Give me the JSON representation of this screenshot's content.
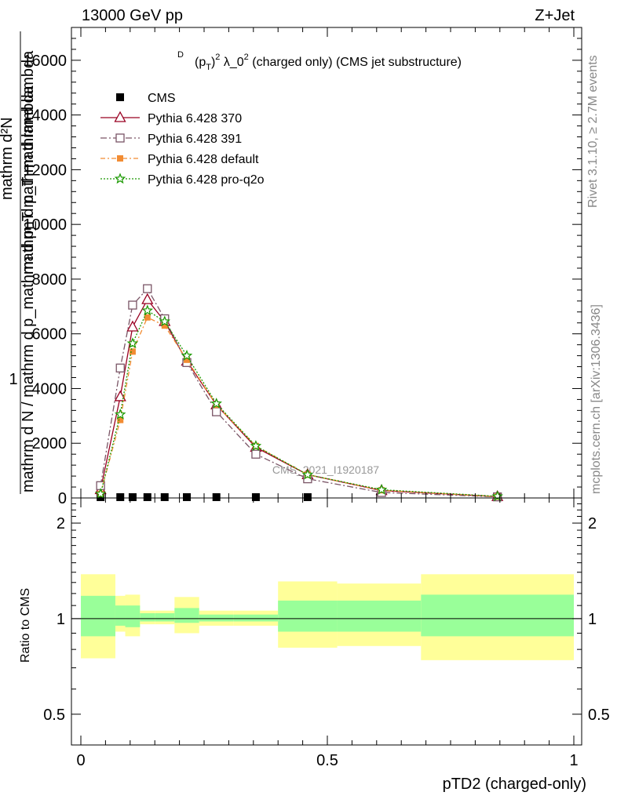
{
  "header": {
    "left": "13000 GeV pp",
    "right": "Z+Jet"
  },
  "side_labels": {
    "rivet": "Rivet 3.1.10, ≥ 2.7M events",
    "mcplots": "mcplots.cern.ch [arXiv:1306.3436]"
  },
  "colors": {
    "pythia370": "#990022",
    "pythia391": "#7a5566",
    "default": "#f28c33",
    "proq2o": "#1a9900",
    "cms": "#000000",
    "band_inner": "#99ff99",
    "band_outer": "#ffff99"
  },
  "chart_data": [
    {
      "type": "line",
      "title": "(p_T^D)^2 λ_0^2 (charged only) (CMS jet substructure)",
      "title_parts": {
        "p": "(p",
        "sup_d": "D",
        "sub_t": "T",
        "close": ")",
        "sup2": "2",
        "lambda": " λ_0",
        "sup3": "2",
        "rest": " (charged only) (CMS jet substructure)"
      },
      "ylabel_top": "1",
      "ylabel_lines": [
        "mathrm d N / mathrm d p_mathrm d p_T mathrm d lambda",
        "mathrm d²N"
      ],
      "ylabel_bottom": "mathrm d N / mathrm d p_mathrm d p_T mathrm d lambda",
      "ylabel_num": "mathrm d²N",
      "ylabel_den": "mathrm d p_T mathrm d lambda",
      "ylim": [
        0,
        17200
      ],
      "xlim": [
        -0.02,
        1.02
      ],
      "yticks": [
        {
          "v": 0,
          "label": "0"
        },
        {
          "v": 2000,
          "label": "2000"
        },
        {
          "v": 4000,
          "label": "4000"
        },
        {
          "v": 6000,
          "label": "6000"
        },
        {
          "v": 8000,
          "label": "8000"
        },
        {
          "v": 10000,
          "label": "10000"
        },
        {
          "v": 12000,
          "label": "12000"
        },
        {
          "v": 14000,
          "label": "14000"
        },
        {
          "v": 16000,
          "label": "16000"
        }
      ],
      "watermark": "CMS_2021_I1920187",
      "legend_position": "top-left",
      "series": [
        {
          "name": "CMS",
          "key": "cms",
          "marker": "square-filled",
          "x": [
            0.04,
            0.08,
            0.105,
            0.135,
            0.17,
            0.215,
            0.275,
            0.355,
            0.46
          ],
          "y": [
            30,
            30,
            30,
            30,
            30,
            30,
            30,
            30,
            30
          ]
        },
        {
          "name": "Pythia 6.428 370",
          "key": "pythia370",
          "marker": "triangle-open",
          "dash": "",
          "x": [
            0.04,
            0.08,
            0.105,
            0.135,
            0.17,
            0.215,
            0.275,
            0.355,
            0.46,
            0.61,
            0.845
          ],
          "y": [
            300,
            3700,
            6250,
            7250,
            6450,
            5000,
            3400,
            1850,
            850,
            270,
            50
          ]
        },
        {
          "name": "Pythia 6.428 391",
          "key": "pythia391",
          "marker": "square-open",
          "dash": "8,3,2,3",
          "x": [
            0.04,
            0.08,
            0.105,
            0.135,
            0.17,
            0.215,
            0.275,
            0.355,
            0.46,
            0.61,
            0.845
          ],
          "y": [
            450,
            4750,
            7050,
            7650,
            6550,
            4950,
            3150,
            1600,
            700,
            200,
            40
          ]
        },
        {
          "name": "Pythia 6.428 default",
          "key": "default",
          "marker": "square-filled-small",
          "dash": "6,3,2,3",
          "x": [
            0.04,
            0.08,
            0.105,
            0.135,
            0.17,
            0.215,
            0.275,
            0.355,
            0.46,
            0.61,
            0.845
          ],
          "y": [
            150,
            2850,
            5350,
            6600,
            6300,
            5050,
            3400,
            1900,
            850,
            280,
            50
          ]
        },
        {
          "name": "Pythia 6.428 pro-q2o",
          "key": "proq2o",
          "marker": "star-open",
          "dash": "2,2",
          "x": [
            0.04,
            0.08,
            0.105,
            0.135,
            0.17,
            0.215,
            0.275,
            0.355,
            0.46,
            0.61,
            0.845
          ],
          "y": [
            150,
            3050,
            5650,
            6850,
            6450,
            5200,
            3450,
            1900,
            850,
            300,
            60
          ]
        }
      ]
    },
    {
      "type": "area",
      "xlabel": "pTD2 (charged-only)",
      "ylabel": "Ratio to CMS",
      "ylim": [
        0.4,
        2.4
      ],
      "log_y": true,
      "xticks": [
        {
          "v": 0,
          "label": "0"
        },
        {
          "v": 0.5,
          "label": "0.5"
        },
        {
          "v": 1,
          "label": "1"
        }
      ],
      "yticks": [
        {
          "v": 0.5,
          "label": "0.5"
        },
        {
          "v": 1,
          "label": "1"
        },
        {
          "v": 2,
          "label": "2"
        }
      ],
      "bins": [
        {
          "x0": 0.0,
          "x1": 0.07,
          "lo2": 0.75,
          "hi2": 1.38,
          "lo1": 0.88,
          "hi1": 1.18
        },
        {
          "x0": 0.07,
          "x1": 0.09,
          "lo2": 0.91,
          "hi2": 1.18,
          "lo1": 0.95,
          "hi1": 1.1
        },
        {
          "x0": 0.09,
          "x1": 0.12,
          "lo2": 0.88,
          "hi2": 1.19,
          "lo1": 0.94,
          "hi1": 1.1
        },
        {
          "x0": 0.12,
          "x1": 0.15,
          "lo2": 0.96,
          "hi2": 1.06,
          "lo1": 0.98,
          "hi1": 1.04
        },
        {
          "x0": 0.15,
          "x1": 0.19,
          "lo2": 0.96,
          "hi2": 1.06,
          "lo1": 0.98,
          "hi1": 1.04
        },
        {
          "x0": 0.19,
          "x1": 0.24,
          "lo2": 0.9,
          "hi2": 1.17,
          "lo1": 0.97,
          "hi1": 1.08
        },
        {
          "x0": 0.24,
          "x1": 0.31,
          "lo2": 0.95,
          "hi2": 1.06,
          "lo1": 0.98,
          "hi1": 1.03
        },
        {
          "x0": 0.31,
          "x1": 0.4,
          "lo2": 0.95,
          "hi2": 1.06,
          "lo1": 0.98,
          "hi1": 1.03
        },
        {
          "x0": 0.4,
          "x1": 0.52,
          "lo2": 0.81,
          "hi2": 1.31,
          "lo1": 0.91,
          "hi1": 1.14
        },
        {
          "x0": 0.52,
          "x1": 0.69,
          "lo2": 0.82,
          "hi2": 1.29,
          "lo1": 0.91,
          "hi1": 1.14
        },
        {
          "x0": 0.69,
          "x1": 1.0,
          "lo2": 0.74,
          "hi2": 1.38,
          "lo1": 0.88,
          "hi1": 1.19
        }
      ]
    }
  ]
}
